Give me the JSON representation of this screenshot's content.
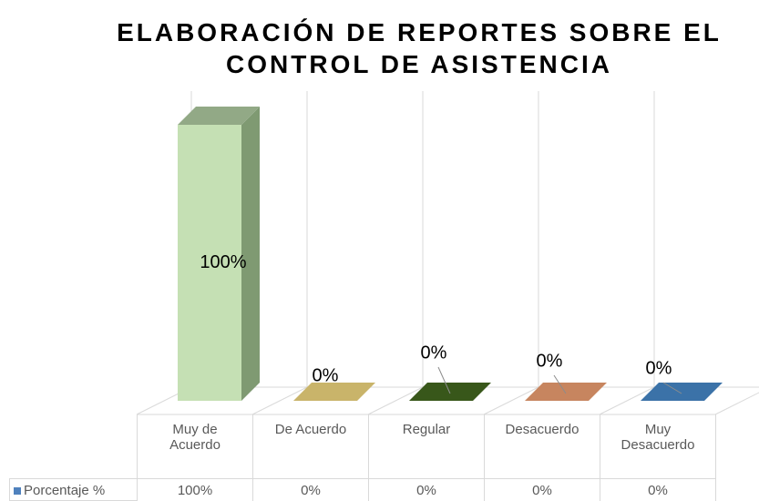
{
  "chart_data": {
    "type": "bar3d",
    "title": "ELABORACIÓN DE REPORTES SOBRE EL CONTROL DE ASISTENCIA",
    "categories": [
      "Muy de Acuerdo",
      "De Acuerdo",
      "Regular",
      "Desacuerdo",
      "Muy Desacuerdo"
    ],
    "series": [
      {
        "name": "Porcentaje %",
        "color": "#4f81bd",
        "values": [
          100,
          0,
          0,
          0,
          0
        ],
        "value_labels": [
          "100%",
          "0%",
          "0%",
          "0%",
          "0%"
        ],
        "colors": [
          "#c5e0b4",
          "#c9b46a",
          "#38571a",
          "#c7855f",
          "#3b72a8"
        ]
      }
    ]
  }
}
